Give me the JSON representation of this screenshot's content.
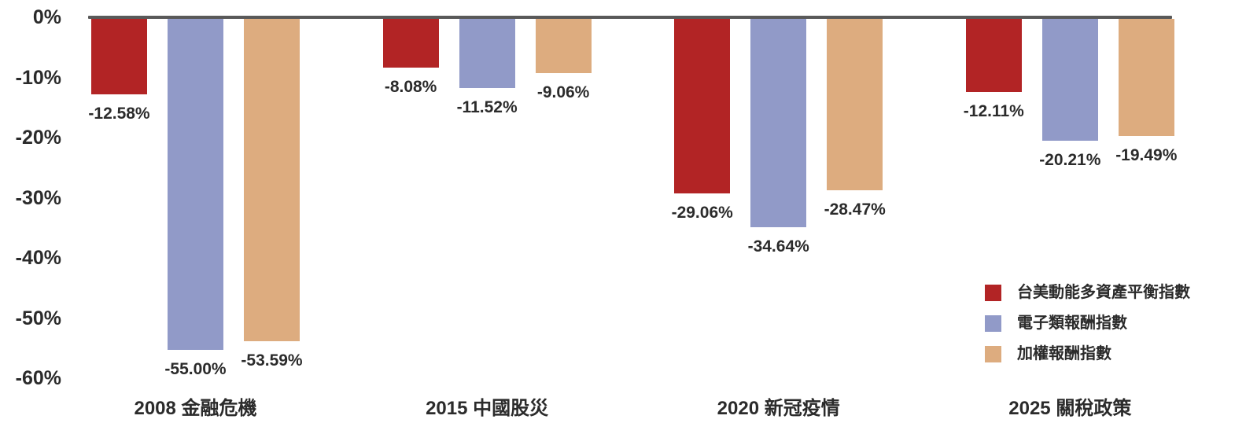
{
  "chart_data": {
    "type": "bar",
    "title": "",
    "xlabel": "",
    "ylabel": "",
    "categories": [
      "2008 金融危機",
      "2015 中國股災",
      "2020 新冠疫情",
      "2025 關稅政策"
    ],
    "series": [
      {
        "name": "台美動能多資產平衡指數",
        "color": "#B22425",
        "values": [
          -12.58,
          -8.08,
          -29.06,
          -12.11
        ]
      },
      {
        "name": "電子類報酬指數",
        "color": "#919AC8",
        "values": [
          -55.0,
          -11.52,
          -34.64,
          -20.21
        ]
      },
      {
        "name": "加權報酬指數",
        "color": "#DDAC7F",
        "values": [
          -53.59,
          -9.06,
          -28.47,
          -19.49
        ]
      }
    ],
    "value_labels": [
      [
        "-12.58%",
        "-8.08%",
        "-29.06%",
        "-12.11%"
      ],
      [
        "-55.00%",
        "-11.52%",
        "-34.64%",
        "-20.21%"
      ],
      [
        "-53.59%",
        "-9.06%",
        "-28.47%",
        "-19.49%"
      ]
    ],
    "yticks": {
      "labels": [
        "0%",
        "-10%",
        "-20%",
        "-30%",
        "-40%",
        "-50%",
        "-60%"
      ],
      "values": [
        0,
        -10,
        -20,
        -30,
        -40,
        -50,
        -60
      ]
    },
    "ylim": [
      0,
      -60
    ],
    "grid": false,
    "legend_position": "right-bottom",
    "colors": {
      "axis_line": "#595959",
      "text": "#2b2b2b",
      "background": "#ffffff"
    }
  }
}
